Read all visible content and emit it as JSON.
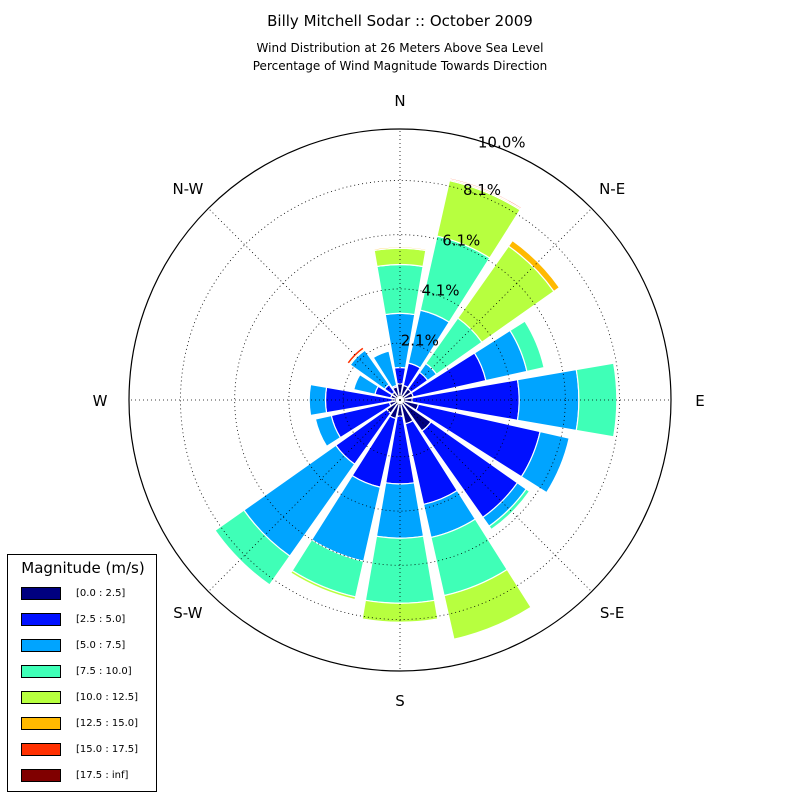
{
  "title": "Billy Mitchell Sodar :: October 2009",
  "subtitle_line1": "Wind Distribution at 26 Meters Above Sea Level",
  "subtitle_line2": "Percentage of Wind Magnitude Towards Direction",
  "chart_data": {
    "type": "windrose",
    "direction_labels": [
      "N",
      "N-E",
      "E",
      "S-E",
      "S",
      "S-W",
      "W",
      "N-W"
    ],
    "radial_tick_labels": [
      "2.1%",
      "4.1%",
      "6.1%",
      "8.1%",
      "10.0%"
    ],
    "radial_ticks": [
      2.1,
      4.1,
      6.1,
      8.1,
      10.0
    ],
    "rmax": 10.0,
    "legend_title": "Magnitude (m/s)",
    "bins": [
      "[0.0 : 2.5]",
      "[2.5 : 5.0]",
      "[5.0 : 7.5]",
      "[7.5 : 10.0]",
      "[10.0 : 12.5]",
      "[12.5 : 15.0]",
      "[15.0 : 17.5]",
      "[17.5 : inf]"
    ],
    "colors": [
      "#000080",
      "#0010ff",
      "#00a4ff",
      "#3fffb7",
      "#b7ff3f",
      "#ffb900",
      "#ff3000",
      "#800000"
    ],
    "directions_deg": [
      0,
      22.5,
      45,
      67.5,
      90,
      112.5,
      135,
      157.5,
      180,
      202.5,
      225,
      247.5,
      270,
      292.5,
      315,
      337.5
    ],
    "cumulative": [
      [
        0.6,
        1.2,
        3.2,
        5.0,
        5.6,
        5.65,
        5.65,
        5.65
      ],
      [
        0.55,
        1.4,
        3.4,
        6.2,
        8.3,
        8.35,
        8.4,
        8.4
      ],
      [
        0.5,
        1.25,
        1.65,
        3.7,
        6.95,
        7.2,
        7.2,
        7.2
      ],
      [
        0.5,
        3.25,
        4.8,
        5.45,
        5.45,
        5.45,
        5.45,
        5.45
      ],
      [
        0.45,
        4.4,
        6.6,
        8.0,
        8.0,
        8.0,
        8.0,
        8.0
      ],
      [
        0.7,
        5.3,
        6.4,
        6.4,
        6.4,
        6.4,
        6.4,
        6.4
      ],
      [
        1.4,
        5.3,
        5.7,
        5.85,
        5.85,
        5.85,
        5.85,
        5.85
      ],
      [
        0.9,
        3.95,
        5.2,
        7.4,
        9.05,
        9.05,
        9.05,
        9.05
      ],
      [
        0.6,
        3.1,
        5.1,
        7.5,
        8.2,
        8.2,
        8.2,
        8.2
      ],
      [
        0.7,
        3.3,
        6.1,
        7.45,
        7.55,
        7.55,
        7.55,
        7.55
      ],
      [
        0.6,
        2.9,
        7.05,
        8.35,
        8.35,
        8.35,
        8.35,
        8.35
      ],
      [
        0.4,
        2.6,
        3.2,
        3.2,
        3.2,
        3.2,
        3.2,
        3.2
      ],
      [
        0.3,
        2.75,
        3.35,
        3.35,
        3.35,
        3.35,
        3.35,
        3.35
      ],
      [
        0.35,
        0.95,
        1.75,
        1.75,
        1.75,
        1.75,
        1.75,
        1.75
      ],
      [
        0.35,
        0.7,
        2.25,
        2.25,
        2.3,
        2.3,
        2.4,
        2.4
      ],
      [
        0.5,
        0.55,
        1.85,
        1.85,
        1.85,
        1.85,
        1.85,
        1.85
      ]
    ]
  }
}
